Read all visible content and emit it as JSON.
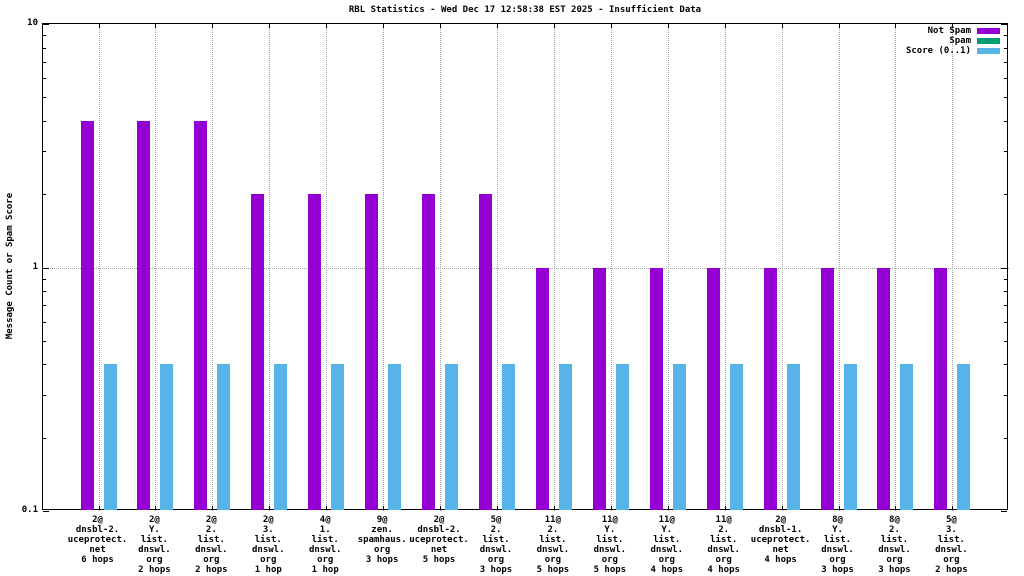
{
  "chart_data": {
    "type": "bar",
    "title": "RBL Statistics - Wed Dec 17 12:58:38 EST 2025 - Insufficient Data",
    "xlabel": "",
    "ylabel": "Message Count or Spam Score",
    "yscale": "log",
    "ylim": [
      0.1,
      10
    ],
    "yticks": [
      10,
      1,
      0.1
    ],
    "grid": true,
    "legend_position": "top-right-inside",
    "frame_color": "#000000",
    "grid_color": "#a0a0a0",
    "background_color": "#ffffff",
    "categories": [
      [
        "2@",
        "dnsbl-2.",
        "uceprotect.",
        "net",
        "6 hops"
      ],
      [
        "2@",
        "Y.",
        "list.",
        "dnswl.",
        "org",
        "2 hops"
      ],
      [
        "2@",
        "2.",
        "list.",
        "dnswl.",
        "org",
        "2 hops"
      ],
      [
        "2@",
        "3.",
        "list.",
        "dnswl.",
        "org",
        "1 hop"
      ],
      [
        "4@",
        "1.",
        "list.",
        "dnswl.",
        "org",
        "1 hop"
      ],
      [
        "9@",
        "zen.",
        "spamhaus.",
        "org",
        "3 hops"
      ],
      [
        "2@",
        "dnsbl-2.",
        "uceprotect.",
        "net",
        "5 hops"
      ],
      [
        "5@",
        "2.",
        "list.",
        "dnswl.",
        "org",
        "3 hops"
      ],
      [
        "11@",
        "2.",
        "list.",
        "dnswl.",
        "org",
        "5 hops"
      ],
      [
        "11@",
        "Y.",
        "list.",
        "dnswl.",
        "org",
        "5 hops"
      ],
      [
        "11@",
        "Y.",
        "list.",
        "dnswl.",
        "org",
        "4 hops"
      ],
      [
        "11@",
        "2.",
        "list.",
        "dnswl.",
        "org",
        "4 hops"
      ],
      [
        "2@",
        "dnsbl-1.",
        "uceprotect.",
        "net",
        "4 hops"
      ],
      [
        "8@",
        "Y.",
        "list.",
        "dnswl.",
        "org",
        "3 hops"
      ],
      [
        "8@",
        "2.",
        "list.",
        "dnswl.",
        "org",
        "3 hops"
      ],
      [
        "5@",
        "3.",
        "list.",
        "dnswl.",
        "org",
        "2 hops"
      ]
    ],
    "series": [
      {
        "name": "Not Spam",
        "color": "#9400d3",
        "values": [
          4,
          4,
          4,
          2,
          2,
          2,
          2,
          2,
          1,
          1,
          1,
          1,
          1,
          1,
          1,
          1
        ]
      },
      {
        "name": "Spam",
        "color": "#009e73",
        "values": [
          0,
          0,
          0,
          0,
          0,
          0,
          0,
          0,
          0,
          0,
          0,
          0,
          0,
          0,
          0,
          0
        ]
      },
      {
        "name": "Score (0..1)",
        "color": "#56b4e9",
        "values": [
          0.4,
          0.4,
          0.4,
          0.4,
          0.4,
          0.4,
          0.4,
          0.4,
          0.4,
          0.4,
          0.4,
          0.4,
          0.4,
          0.4,
          0.4,
          0.4
        ]
      }
    ]
  }
}
